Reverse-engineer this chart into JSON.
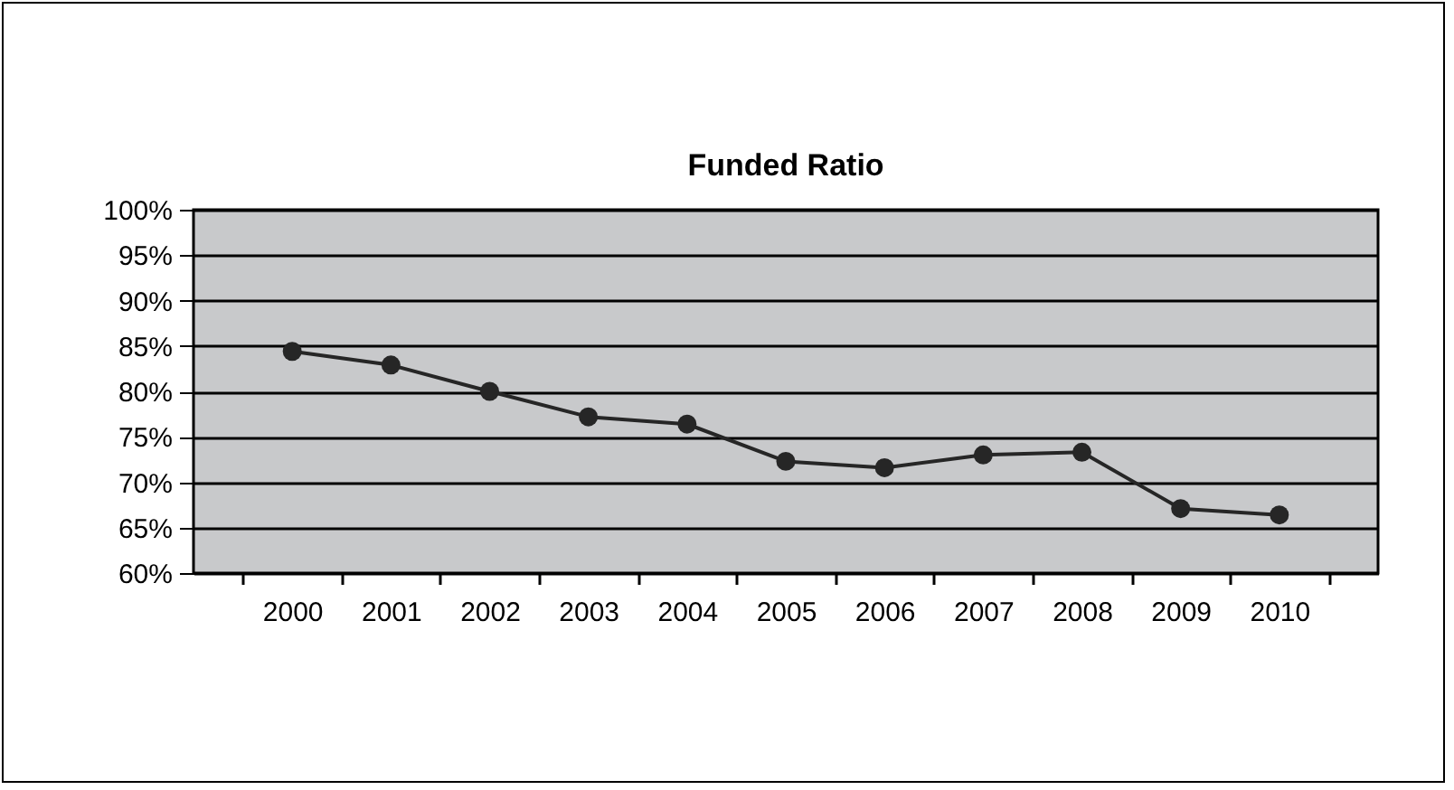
{
  "chart_data": {
    "type": "line",
    "title": "Funded Ratio",
    "categories": [
      "2000",
      "2001",
      "2002",
      "2003",
      "2004",
      "2005",
      "2006",
      "2007",
      "2008",
      "2009",
      "2010"
    ],
    "values": [
      84.4,
      82.9,
      80.0,
      77.2,
      76.4,
      72.3,
      71.6,
      73.0,
      73.3,
      67.1,
      66.4
    ],
    "color": "#262626",
    "marker": "circle",
    "line_style": "solid",
    "ylim": [
      60,
      100
    ],
    "yticks": [
      {
        "value": 60,
        "label": "60%"
      },
      {
        "value": 65,
        "label": "65%"
      },
      {
        "value": 70,
        "label": "70%"
      },
      {
        "value": 75,
        "label": "75%"
      },
      {
        "value": 80,
        "label": "80%"
      },
      {
        "value": 85,
        "label": "85%"
      },
      {
        "value": 90,
        "label": "90%"
      },
      {
        "value": 95,
        "label": "95%"
      },
      {
        "value": 100,
        "label": "100%"
      }
    ],
    "grid": "y"
  }
}
